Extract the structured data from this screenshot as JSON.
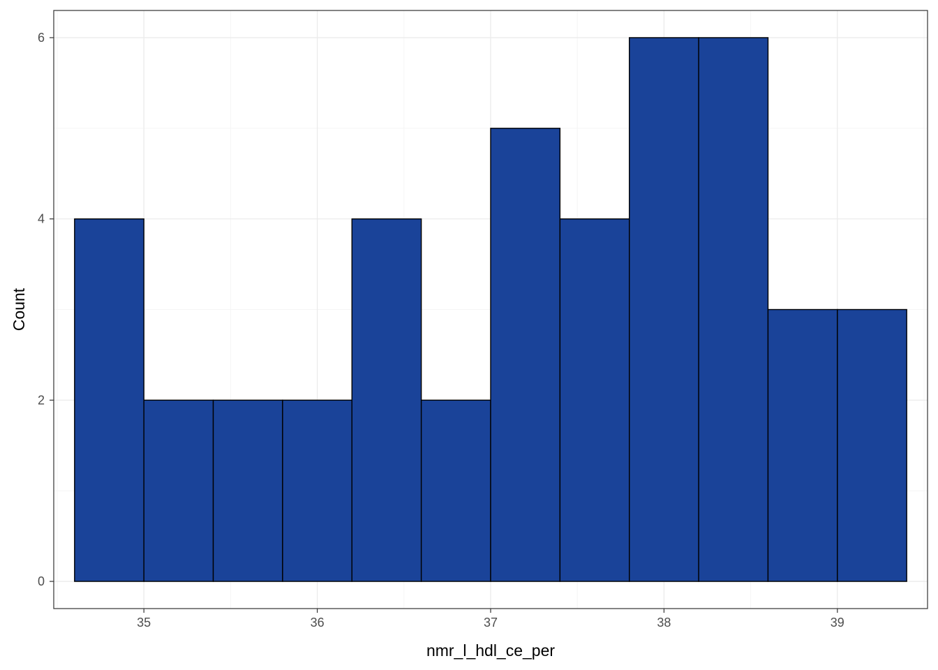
{
  "chart_data": {
    "type": "bar",
    "subtype": "histogram",
    "xlabel": "nmr_l_hdl_ce_per",
    "ylabel": "Count",
    "xlim": [
      34.48,
      39.52
    ],
    "ylim": [
      -0.3,
      6.3
    ],
    "x_ticks": [
      35,
      36,
      37,
      38,
      39
    ],
    "x_tick_labels": [
      "35",
      "36",
      "37",
      "38",
      "39"
    ],
    "y_ticks": [
      0,
      2,
      4,
      6
    ],
    "y_tick_labels": [
      "0",
      "2",
      "4",
      "6"
    ],
    "bins": [
      {
        "x0": 34.6,
        "x1": 35.0,
        "count": 4
      },
      {
        "x0": 35.0,
        "x1": 35.4,
        "count": 2
      },
      {
        "x0": 35.4,
        "x1": 35.8,
        "count": 2
      },
      {
        "x0": 35.8,
        "x1": 36.2,
        "count": 2
      },
      {
        "x0": 36.2,
        "x1": 36.6,
        "count": 4
      },
      {
        "x0": 36.6,
        "x1": 37.0,
        "count": 2
      },
      {
        "x0": 37.0,
        "x1": 37.4,
        "count": 5
      },
      {
        "x0": 37.4,
        "x1": 37.8,
        "count": 4
      },
      {
        "x0": 37.8,
        "x1": 38.2,
        "count": 6
      },
      {
        "x0": 38.2,
        "x1": 38.6,
        "count": 6
      },
      {
        "x0": 38.6,
        "x1": 39.0,
        "count": 3
      },
      {
        "x0": 39.0,
        "x1": 39.4,
        "count": 3
      }
    ],
    "grid": true,
    "legend": "none",
    "colors": {
      "bar_fill": "#1a4399",
      "bar_stroke": "#000000",
      "grid_major": "#ebebeb",
      "grid_minor": "#f5f5f5",
      "panel_border": "#333333",
      "background": "#ffffff"
    }
  }
}
